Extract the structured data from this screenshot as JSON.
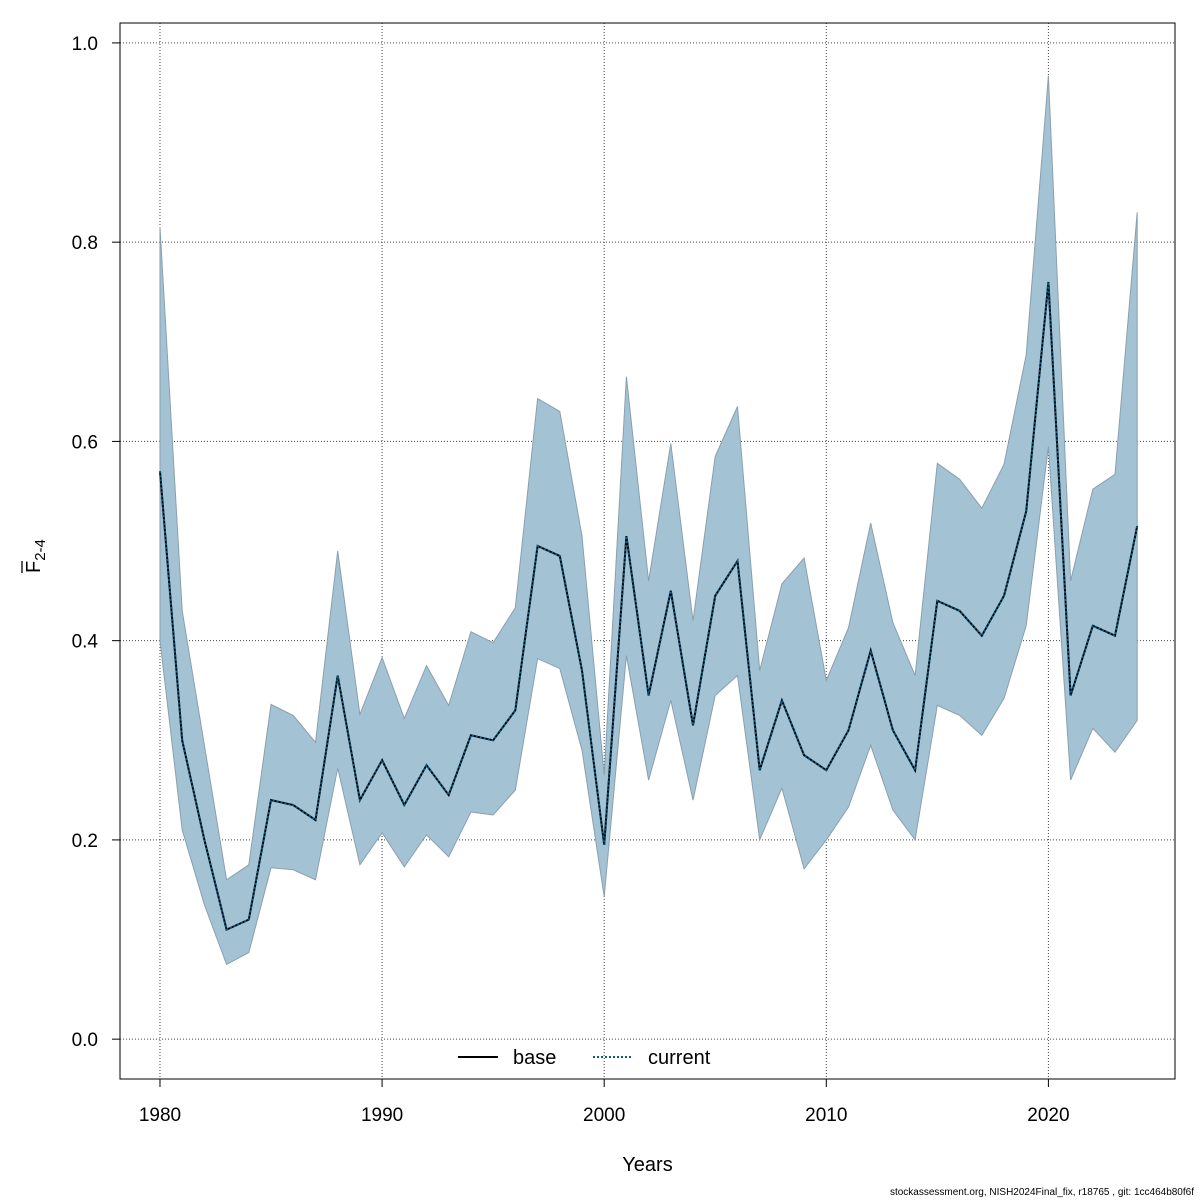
{
  "footer_text": "stockassessment.org, NISH2024Final_fix, r18765 , git: 1cc464b80f6f",
  "colors": {
    "ci_fill": "#a3c2d4",
    "ci_stroke": "#8aa0ae",
    "base_line": "#000000",
    "current_line": "#0a5a84",
    "grid": "#444444"
  },
  "chart_data": {
    "type": "line",
    "xlabel": "Years",
    "ylabel_main": "F",
    "ylabel_sub": "2-4",
    "xlim": [
      1978.2,
      2025.7
    ],
    "ylim": [
      -0.04,
      1.02
    ],
    "x_ticks": [
      1980,
      1990,
      2000,
      2010,
      2020
    ],
    "y_ticks": [
      0.0,
      0.2,
      0.4,
      0.6,
      0.8,
      1.0
    ],
    "x_tick_labels": [
      "1980",
      "1990",
      "2000",
      "2010",
      "2020"
    ],
    "y_tick_labels": [
      "0.0",
      "0.2",
      "0.4",
      "0.6",
      "0.8",
      "1.0"
    ],
    "grid": true,
    "legend": {
      "placement": "bottom-center",
      "entries": [
        "base",
        "current"
      ]
    },
    "x": [
      1980,
      1981,
      1982,
      1983,
      1984,
      1985,
      1986,
      1987,
      1988,
      1989,
      1990,
      1991,
      1992,
      1993,
      1994,
      1995,
      1996,
      1997,
      1998,
      1999,
      2000,
      2001,
      2002,
      2003,
      2004,
      2005,
      2006,
      2007,
      2008,
      2009,
      2010,
      2011,
      2012,
      2013,
      2014,
      2015,
      2016,
      2017,
      2018,
      2019,
      2020,
      2021,
      2022,
      2023,
      2024
    ],
    "series": [
      {
        "name": "base",
        "style": "solid",
        "values": [
          0.57,
          0.3,
          0.2,
          0.11,
          0.12,
          0.24,
          0.235,
          0.22,
          0.365,
          0.24,
          0.28,
          0.235,
          0.275,
          0.245,
          0.305,
          0.3,
          0.33,
          0.495,
          0.485,
          0.37,
          0.195,
          0.505,
          0.345,
          0.45,
          0.315,
          0.445,
          0.48,
          0.27,
          0.34,
          0.285,
          0.27,
          0.31,
          0.39,
          0.31,
          0.27,
          0.44,
          0.43,
          0.405,
          0.445,
          0.53,
          0.76,
          0.345,
          0.415,
          0.405,
          0.515
        ]
      },
      {
        "name": "current",
        "style": "dotted",
        "values": [
          0.57,
          0.3,
          0.2,
          0.11,
          0.12,
          0.24,
          0.235,
          0.22,
          0.365,
          0.24,
          0.28,
          0.235,
          0.275,
          0.245,
          0.305,
          0.3,
          0.33,
          0.495,
          0.485,
          0.37,
          0.195,
          0.505,
          0.345,
          0.45,
          0.315,
          0.445,
          0.48,
          0.27,
          0.34,
          0.285,
          0.27,
          0.31,
          0.39,
          0.31,
          0.27,
          0.44,
          0.43,
          0.405,
          0.445,
          0.53,
          0.76,
          0.345,
          0.415,
          0.405,
          0.515
        ]
      }
    ],
    "ci_lower": [
      0.4,
      0.21,
      0.135,
      0.075,
      0.087,
      0.172,
      0.17,
      0.16,
      0.272,
      0.175,
      0.207,
      0.173,
      0.205,
      0.183,
      0.228,
      0.225,
      0.25,
      0.382,
      0.372,
      0.29,
      0.143,
      0.385,
      0.26,
      0.34,
      0.24,
      0.345,
      0.365,
      0.2,
      0.252,
      0.171,
      0.2,
      0.233,
      0.295,
      0.23,
      0.2,
      0.335,
      0.325,
      0.305,
      0.342,
      0.415,
      0.595,
      0.26,
      0.312,
      0.288,
      0.32
    ],
    "ci_upper": [
      0.815,
      0.43,
      0.295,
      0.16,
      0.175,
      0.336,
      0.325,
      0.298,
      0.49,
      0.326,
      0.383,
      0.322,
      0.375,
      0.335,
      0.409,
      0.398,
      0.433,
      0.643,
      0.63,
      0.505,
      0.265,
      0.665,
      0.46,
      0.598,
      0.42,
      0.585,
      0.635,
      0.37,
      0.457,
      0.483,
      0.36,
      0.413,
      0.518,
      0.418,
      0.365,
      0.578,
      0.562,
      0.533,
      0.577,
      0.687,
      0.967,
      0.46,
      0.552,
      0.567,
      0.83
    ]
  }
}
